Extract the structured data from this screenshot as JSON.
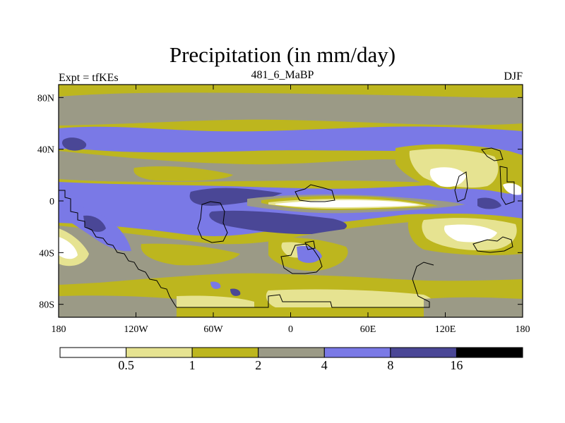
{
  "title": "Precipitation (in mm/day)",
  "left_label": "Expt = tfKEs",
  "center_label": "481_6_MaBP",
  "right_label": "DJF",
  "colors": {
    "c0": "#ffffff",
    "c1": "#e6e391",
    "c2": "#bdb61e",
    "c3": "#9b9a86",
    "c4": "#7a79e6",
    "c5": "#4a4796",
    "c6": "#000000",
    "coast": "#000000"
  },
  "map": {
    "lat_ticks": [
      {
        "value": 80,
        "label": "80N"
      },
      {
        "value": 40,
        "label": "40N"
      },
      {
        "value": 0,
        "label": "0"
      },
      {
        "value": -40,
        "label": "40S"
      },
      {
        "value": -80,
        "label": "80S"
      }
    ],
    "lon_ticks": [
      {
        "value": -180,
        "label": "180"
      },
      {
        "value": -120,
        "label": "120W"
      },
      {
        "value": -60,
        "label": "60W"
      },
      {
        "value": 0,
        "label": "0"
      },
      {
        "value": 60,
        "label": "60E"
      },
      {
        "value": 120,
        "label": "120E"
      },
      {
        "value": 180,
        "label": "180"
      }
    ]
  },
  "colorbar": {
    "boxes": [
      "c0",
      "c1",
      "c2",
      "c3",
      "c4",
      "c5",
      "c6"
    ],
    "labels": [
      "0.5",
      "1",
      "2",
      "4",
      "8",
      "16"
    ]
  }
}
